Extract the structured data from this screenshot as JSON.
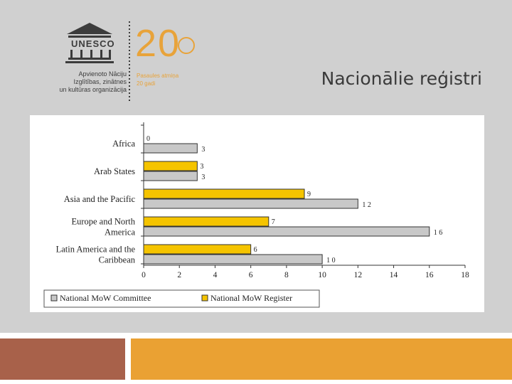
{
  "slide": {
    "title": "Nacionālie reģistri",
    "colors": {
      "background": "#d0d0d0",
      "footer_left": "#a8614a",
      "footer_right": "#eaa133"
    }
  },
  "logo": {
    "acronym": "UNESCO",
    "org_lines": [
      "Apvienoto Nāciju",
      "Izglītības, zinātnes",
      "un kultūras organizācija"
    ],
    "anniversary_number": "20",
    "anniversary_lines": [
      "Pasaules atmiņa",
      "20 gadi"
    ],
    "colors": {
      "logo": "#3c3c3c",
      "accent": "#e8a33a"
    }
  },
  "chart_data": {
    "type": "bar",
    "orientation": "horizontal",
    "categories": [
      "Africa",
      "Arab States",
      "Asia and the Pacific",
      "Europe and North America",
      "Latin America and the Caribbean"
    ],
    "category_labels": [
      [
        "Africa"
      ],
      [
        "Arab States"
      ],
      [
        "Asia and the Pacific"
      ],
      [
        "Europe and North",
        "America"
      ],
      [
        "Latin America and the",
        "Caribbean"
      ]
    ],
    "series": [
      {
        "name": "National MoW Register",
        "values": [
          0,
          3,
          9,
          7,
          6
        ],
        "color": "#f5c400"
      },
      {
        "name": "National MoW Committee",
        "values": [
          3,
          3,
          12,
          16,
          10
        ],
        "color": "#c8c8c8"
      }
    ],
    "value_labels": {
      "National MoW Register": [
        "0",
        "3",
        "9",
        "7",
        "6"
      ],
      "National MoW Committee": [
        "3",
        "3",
        "1 2",
        "1 6",
        "1 0"
      ]
    },
    "xlim": [
      0,
      18
    ],
    "xticks": [
      0,
      2,
      4,
      6,
      8,
      10,
      12,
      14,
      16,
      18
    ],
    "legend": {
      "position": "bottom",
      "entries": [
        "National MoW Committee",
        "National MoW Register"
      ]
    },
    "grid": false
  }
}
